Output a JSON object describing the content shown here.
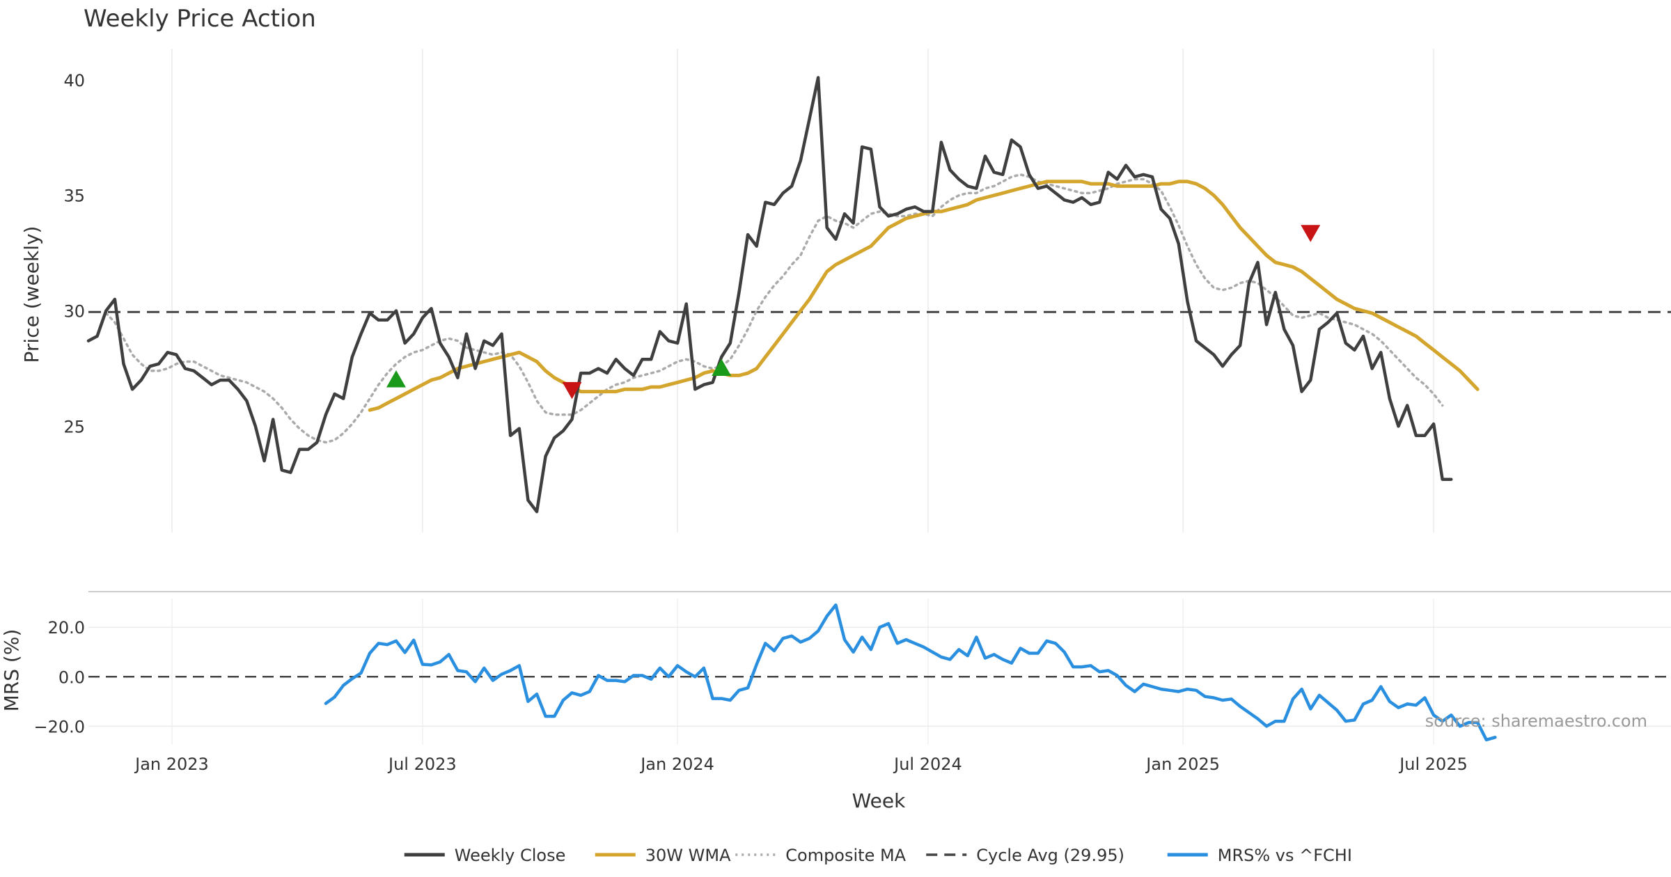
{
  "colors": {
    "close": "#3f3f3f",
    "wma": "#d4a52d",
    "composite": "#aaaaaa",
    "cycle": "#444444",
    "mrs": "#2b8fe0",
    "buy": "#1a9a1a",
    "sell": "#c81414"
  },
  "chart_data": [
    {
      "type": "line",
      "title": "Weekly Price Action",
      "ylabel": "Price (weekly)",
      "ylim": [
        20.4,
        41.2
      ],
      "yticks": [
        25,
        30,
        35,
        40
      ],
      "xlim": [
        0,
        180
      ],
      "xticks": [
        {
          "week": 9.5,
          "label": "Jan 2023"
        },
        {
          "week": 38,
          "label": "Jul 2023"
        },
        {
          "week": 67,
          "label": "Jan 2024"
        },
        {
          "week": 95.5,
          "label": "Jul 2024"
        },
        {
          "week": 124.5,
          "label": "Jan 2025"
        },
        {
          "week": 153,
          "label": "Jul 2025"
        }
      ],
      "cycle_avg": 29.95,
      "series": [
        {
          "name": "Weekly Close",
          "start_week": 0,
          "values": [
            28.7,
            28.9,
            30.0,
            30.5,
            27.7,
            26.6,
            27.0,
            27.6,
            27.7,
            28.2,
            28.1,
            27.5,
            27.4,
            27.1,
            26.8,
            27.0,
            27.0,
            26.6,
            26.1,
            25.0,
            23.5,
            25.3,
            23.1,
            23.0,
            24.0,
            24.0,
            24.3,
            25.5,
            26.4,
            26.2,
            28.0,
            29.0,
            29.9,
            29.6,
            29.6,
            30.0,
            28.6,
            29.0,
            29.7,
            30.1,
            28.6,
            28.0,
            27.1,
            29.0,
            27.5,
            28.7,
            28.5,
            29.0,
            24.6,
            24.9,
            21.8,
            21.3,
            23.7,
            24.5,
            24.8,
            25.3,
            27.3,
            27.3,
            27.5,
            27.3,
            27.9,
            27.5,
            27.2,
            27.9,
            27.9,
            29.1,
            28.7,
            28.6,
            30.3,
            26.6,
            26.8,
            26.9,
            28.0,
            28.6,
            30.8,
            33.3,
            32.8,
            34.7,
            34.6,
            35.1,
            35.4,
            36.5,
            38.3,
            40.1,
            33.6,
            33.1,
            34.2,
            33.8,
            37.1,
            37.0,
            34.5,
            34.1,
            34.2,
            34.4,
            34.5,
            34.3,
            34.3,
            37.3,
            36.1,
            35.7,
            35.4,
            35.3,
            36.7,
            36.0,
            35.9,
            37.4,
            37.1,
            35.9,
            35.3,
            35.4,
            35.1,
            34.8,
            34.7,
            34.9,
            34.6,
            34.7,
            36.0,
            35.7,
            36.3,
            35.8,
            35.9,
            35.8,
            34.4,
            34.0,
            32.9,
            30.4,
            28.7,
            28.4,
            28.1,
            27.6,
            28.1,
            28.5,
            31.2,
            32.1,
            29.4,
            30.8,
            29.2,
            28.5,
            26.5,
            27.0,
            29.2,
            29.5,
            29.9,
            28.6,
            28.3,
            28.9,
            27.5,
            28.2,
            26.2,
            25.0,
            25.9,
            24.6,
            24.6,
            25.1,
            22.7,
            22.7
          ]
        },
        {
          "name": "30W WMA",
          "start_week": 32,
          "values": [
            25.7,
            25.8,
            26.0,
            26.2,
            26.4,
            26.6,
            26.8,
            27.0,
            27.1,
            27.3,
            27.5,
            27.6,
            27.7,
            27.8,
            27.9,
            28.0,
            28.1,
            28.2,
            28.0,
            27.8,
            27.4,
            27.1,
            26.9,
            26.7,
            26.5,
            26.5,
            26.5,
            26.5,
            26.5,
            26.6,
            26.6,
            26.6,
            26.7,
            26.7,
            26.8,
            26.9,
            27.0,
            27.1,
            27.3,
            27.4,
            27.3,
            27.2,
            27.2,
            27.3,
            27.5,
            28.0,
            28.5,
            29.0,
            29.5,
            30.0,
            30.5,
            31.1,
            31.7,
            32.0,
            32.2,
            32.4,
            32.6,
            32.8,
            33.2,
            33.6,
            33.8,
            34.0,
            34.1,
            34.2,
            34.3,
            34.3,
            34.4,
            34.5,
            34.6,
            34.8,
            34.9,
            35.0,
            35.1,
            35.2,
            35.3,
            35.4,
            35.5,
            35.6,
            35.6,
            35.6,
            35.6,
            35.6,
            35.5,
            35.5,
            35.5,
            35.4,
            35.4,
            35.4,
            35.4,
            35.4,
            35.5,
            35.5,
            35.6,
            35.6,
            35.5,
            35.3,
            35.0,
            34.6,
            34.1,
            33.6,
            33.2,
            32.8,
            32.4,
            32.1,
            32.0,
            31.9,
            31.7,
            31.4,
            31.1,
            30.8,
            30.5,
            30.3,
            30.1,
            30.0,
            29.9,
            29.7,
            29.5,
            29.3,
            29.1,
            28.9,
            28.6,
            28.3,
            28.0,
            27.7,
            27.4,
            27.0,
            26.6
          ]
        },
        {
          "name": "Composite MA",
          "start_week": 2,
          "values": [
            29.9,
            29.5,
            28.8,
            28.1,
            27.7,
            27.4,
            27.4,
            27.5,
            27.7,
            27.8,
            27.8,
            27.6,
            27.4,
            27.2,
            27.1,
            27.0,
            26.9,
            26.7,
            26.5,
            26.2,
            25.8,
            25.3,
            24.9,
            24.6,
            24.4,
            24.3,
            24.4,
            24.7,
            25.1,
            25.6,
            26.2,
            26.8,
            27.3,
            27.7,
            28.0,
            28.2,
            28.3,
            28.5,
            28.7,
            28.8,
            28.7,
            28.4,
            28.3,
            28.2,
            28.1,
            28.2,
            28.1,
            27.6,
            26.9,
            26.1,
            25.6,
            25.5,
            25.5,
            25.5,
            25.7,
            26.0,
            26.3,
            26.6,
            26.8,
            26.9,
            27.1,
            27.2,
            27.3,
            27.4,
            27.6,
            27.8,
            27.9,
            27.8,
            27.6,
            27.5,
            27.6,
            27.9,
            28.5,
            29.2,
            30.0,
            30.6,
            31.1,
            31.5,
            32.0,
            32.4,
            33.2,
            33.9,
            34.1,
            33.9,
            33.8,
            33.6,
            33.9,
            34.2,
            34.3,
            34.2,
            34.1,
            34.1,
            34.2,
            34.2,
            34.1,
            34.5,
            34.8,
            35.0,
            35.1,
            35.1,
            35.3,
            35.4,
            35.6,
            35.8,
            35.9,
            35.8,
            35.6,
            35.5,
            35.4,
            35.3,
            35.2,
            35.1,
            35.1,
            35.2,
            35.3,
            35.5,
            35.6,
            35.7,
            35.7,
            35.5,
            35.2,
            34.5,
            33.7,
            32.8,
            32.0,
            31.4,
            31.0,
            30.9,
            31.0,
            31.2,
            31.3,
            31.2,
            30.9,
            30.6,
            30.2,
            29.8,
            29.7,
            29.8,
            29.9,
            29.7,
            29.6,
            29.5,
            29.4,
            29.2,
            29.0,
            28.7,
            28.3,
            27.9,
            27.5,
            27.1,
            26.8,
            26.4,
            25.9
          ]
        }
      ],
      "signals": [
        {
          "type": "buy",
          "week": 35,
          "price": 27.0
        },
        {
          "type": "sell",
          "week": 55,
          "price": 26.6
        },
        {
          "type": "buy",
          "week": 72,
          "price": 27.5
        },
        {
          "type": "sell",
          "week": 139,
          "price": 33.4
        }
      ]
    },
    {
      "type": "line",
      "ylabel": "MRS (%)",
      "ylim": [
        -27.5,
        31.6
      ],
      "yticks": [
        {
          "value": 20,
          "label": "20.0"
        },
        {
          "value": 0,
          "label": "0.0"
        },
        {
          "value": -20,
          "label": "−20.0"
        }
      ],
      "zero_line": 0,
      "xlabel": "Week",
      "series": [
        {
          "name": "MRS% vs ^FCHI",
          "start_week": 27,
          "values": [
            -10.8,
            -8.2,
            -3.5,
            -0.8,
            1.5,
            9.5,
            13.5,
            13.0,
            14.5,
            9.8,
            14.8,
            5.0,
            4.8,
            6.0,
            9.0,
            2.5,
            2.0,
            -2.0,
            3.5,
            -1.5,
            1.0,
            2.5,
            4.5,
            -10.0,
            -7.0,
            -16.0,
            -16.0,
            -9.5,
            -6.5,
            -7.5,
            -6.0,
            0.5,
            -1.5,
            -1.5,
            -2.0,
            0.5,
            0.5,
            -1.0,
            3.5,
            0.0,
            4.5,
            2.0,
            0.0,
            3.5,
            -8.8,
            -8.8,
            -9.5,
            -5.5,
            -4.5,
            5.0,
            13.5,
            10.5,
            15.5,
            16.5,
            14.0,
            15.5,
            18.5,
            24.5,
            29.0,
            15.0,
            10.0,
            16.0,
            11.0,
            20.0,
            21.5,
            13.5,
            15.0,
            13.5,
            12.0,
            10.0,
            8.0,
            7.0,
            11.0,
            8.5,
            16.0,
            7.5,
            9.0,
            7.0,
            5.5,
            11.5,
            9.5,
            9.5,
            14.5,
            13.5,
            10.0,
            4.0,
            4.0,
            4.5,
            2.0,
            2.5,
            0.5,
            -3.5,
            -6.0,
            -3.0,
            -4.0,
            -5.0,
            -5.5,
            -6.0,
            -5.0,
            -5.5,
            -8.0,
            -8.5,
            -9.5,
            -9.0,
            -12.0,
            -14.5,
            -17.0,
            -20.0,
            -18.0,
            -18.0,
            -9.0,
            -5.0,
            -13.0,
            -7.5,
            -10.5,
            -13.5,
            -18.0,
            -17.5,
            -11.0,
            -9.5,
            -4.0,
            -10.0,
            -12.5,
            -11.0,
            -11.5,
            -8.5,
            -15.5,
            -18.0,
            -15.5,
            -20.0,
            -18.5,
            -18.5,
            -25.5,
            -24.5
          ]
        }
      ]
    }
  ],
  "legend": [
    {
      "label": "Weekly Close",
      "style": "solid",
      "color": "#3f3f3f"
    },
    {
      "label": "30W WMA",
      "style": "solid",
      "color": "#d4a52d"
    },
    {
      "label": "Composite MA",
      "style": "dotted",
      "color": "#aaaaaa"
    },
    {
      "label": "Cycle Avg (29.95)",
      "style": "dashed",
      "color": "#444444"
    },
    {
      "label": "MRS% vs ^FCHI",
      "style": "solid",
      "color": "#2b8fe0"
    }
  ],
  "source_note": "source: sharemaestro.com"
}
